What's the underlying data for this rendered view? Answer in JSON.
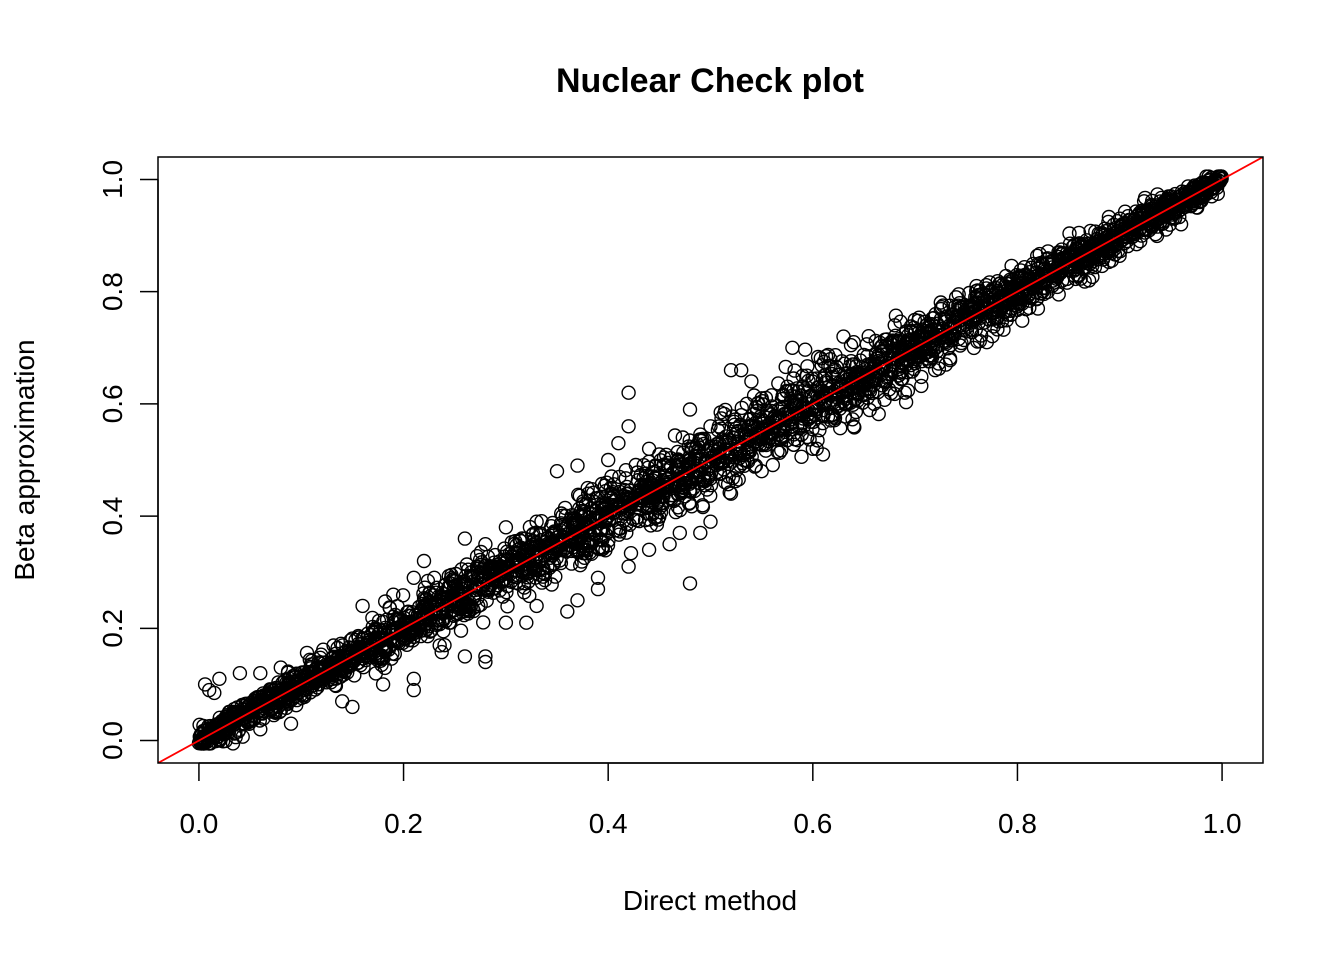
{
  "chart_data": {
    "type": "scatter",
    "title": "Nuclear Check plot",
    "xlabel": "Direct method",
    "ylabel": "Beta approximation",
    "xlim": [
      -0.04,
      1.04
    ],
    "ylim": [
      -0.04,
      1.04
    ],
    "x_ticks": [
      0.0,
      0.2,
      0.4,
      0.6,
      0.8,
      1.0
    ],
    "x_tick_labels": [
      "0.0",
      "0.2",
      "0.4",
      "0.6",
      "0.8",
      "1.0"
    ],
    "y_ticks": [
      0.0,
      0.2,
      0.4,
      0.6,
      0.8,
      1.0
    ],
    "y_tick_labels": [
      "0.0",
      "0.2",
      "0.4",
      "0.6",
      "0.8",
      "1.0"
    ],
    "grid": false,
    "legend": "none",
    "reference_line": {
      "slope": 1,
      "intercept": 0,
      "color": "#ff0000"
    },
    "point_color": "#000000",
    "outlier_points": [
      [
        0.006,
        0.1
      ],
      [
        0.01,
        0.09
      ],
      [
        0.02,
        0.11
      ],
      [
        0.04,
        0.12
      ],
      [
        0.06,
        0.12
      ],
      [
        0.08,
        0.13
      ],
      [
        0.015,
        0.085
      ],
      [
        0.16,
        0.24
      ],
      [
        0.19,
        0.26
      ],
      [
        0.21,
        0.29
      ],
      [
        0.22,
        0.32
      ],
      [
        0.23,
        0.29
      ],
      [
        0.26,
        0.36
      ],
      [
        0.28,
        0.35
      ],
      [
        0.3,
        0.38
      ],
      [
        0.33,
        0.39
      ],
      [
        0.35,
        0.48
      ],
      [
        0.37,
        0.49
      ],
      [
        0.38,
        0.45
      ],
      [
        0.4,
        0.5
      ],
      [
        0.41,
        0.53
      ],
      [
        0.42,
        0.62
      ],
      [
        0.42,
        0.56
      ],
      [
        0.44,
        0.52
      ],
      [
        0.45,
        0.51
      ],
      [
        0.48,
        0.59
      ],
      [
        0.5,
        0.56
      ],
      [
        0.52,
        0.66
      ],
      [
        0.53,
        0.66
      ],
      [
        0.54,
        0.64
      ],
      [
        0.55,
        0.61
      ],
      [
        0.58,
        0.7
      ],
      [
        0.59,
        0.65
      ],
      [
        0.63,
        0.72
      ],
      [
        0.64,
        0.71
      ],
      [
        0.68,
        0.74
      ],
      [
        0.72,
        0.76
      ],
      [
        0.74,
        0.79
      ],
      [
        0.76,
        0.81
      ],
      [
        0.84,
        0.87
      ],
      [
        0.9,
        0.93
      ],
      [
        0.95,
        0.97
      ],
      [
        0.02,
        0.0
      ],
      [
        0.06,
        0.02
      ],
      [
        0.09,
        0.03
      ],
      [
        0.14,
        0.07
      ],
      [
        0.15,
        0.06
      ],
      [
        0.18,
        0.1
      ],
      [
        0.21,
        0.11
      ],
      [
        0.21,
        0.09
      ],
      [
        0.24,
        0.17
      ],
      [
        0.26,
        0.15
      ],
      [
        0.28,
        0.14
      ],
      [
        0.28,
        0.15
      ],
      [
        0.3,
        0.21
      ],
      [
        0.32,
        0.21
      ],
      [
        0.33,
        0.24
      ],
      [
        0.36,
        0.23
      ],
      [
        0.37,
        0.25
      ],
      [
        0.39,
        0.27
      ],
      [
        0.39,
        0.29
      ],
      [
        0.42,
        0.31
      ],
      [
        0.44,
        0.34
      ],
      [
        0.46,
        0.35
      ],
      [
        0.47,
        0.37
      ],
      [
        0.48,
        0.28
      ],
      [
        0.49,
        0.37
      ],
      [
        0.5,
        0.39
      ],
      [
        0.52,
        0.44
      ],
      [
        0.55,
        0.48
      ],
      [
        0.6,
        0.52
      ],
      [
        0.61,
        0.51
      ],
      [
        0.64,
        0.56
      ],
      [
        0.66,
        0.6
      ],
      [
        0.69,
        0.62
      ],
      [
        0.73,
        0.67
      ],
      [
        0.77,
        0.71
      ],
      [
        0.82,
        0.77
      ],
      [
        0.87,
        0.82
      ],
      [
        0.92,
        0.89
      ],
      [
        0.96,
        0.92
      ],
      [
        0.99,
        0.97
      ]
    ],
    "bulk_band": {
      "x_range": [
        0.0,
        1.0
      ],
      "note": "dense points following y = x"
    }
  }
}
